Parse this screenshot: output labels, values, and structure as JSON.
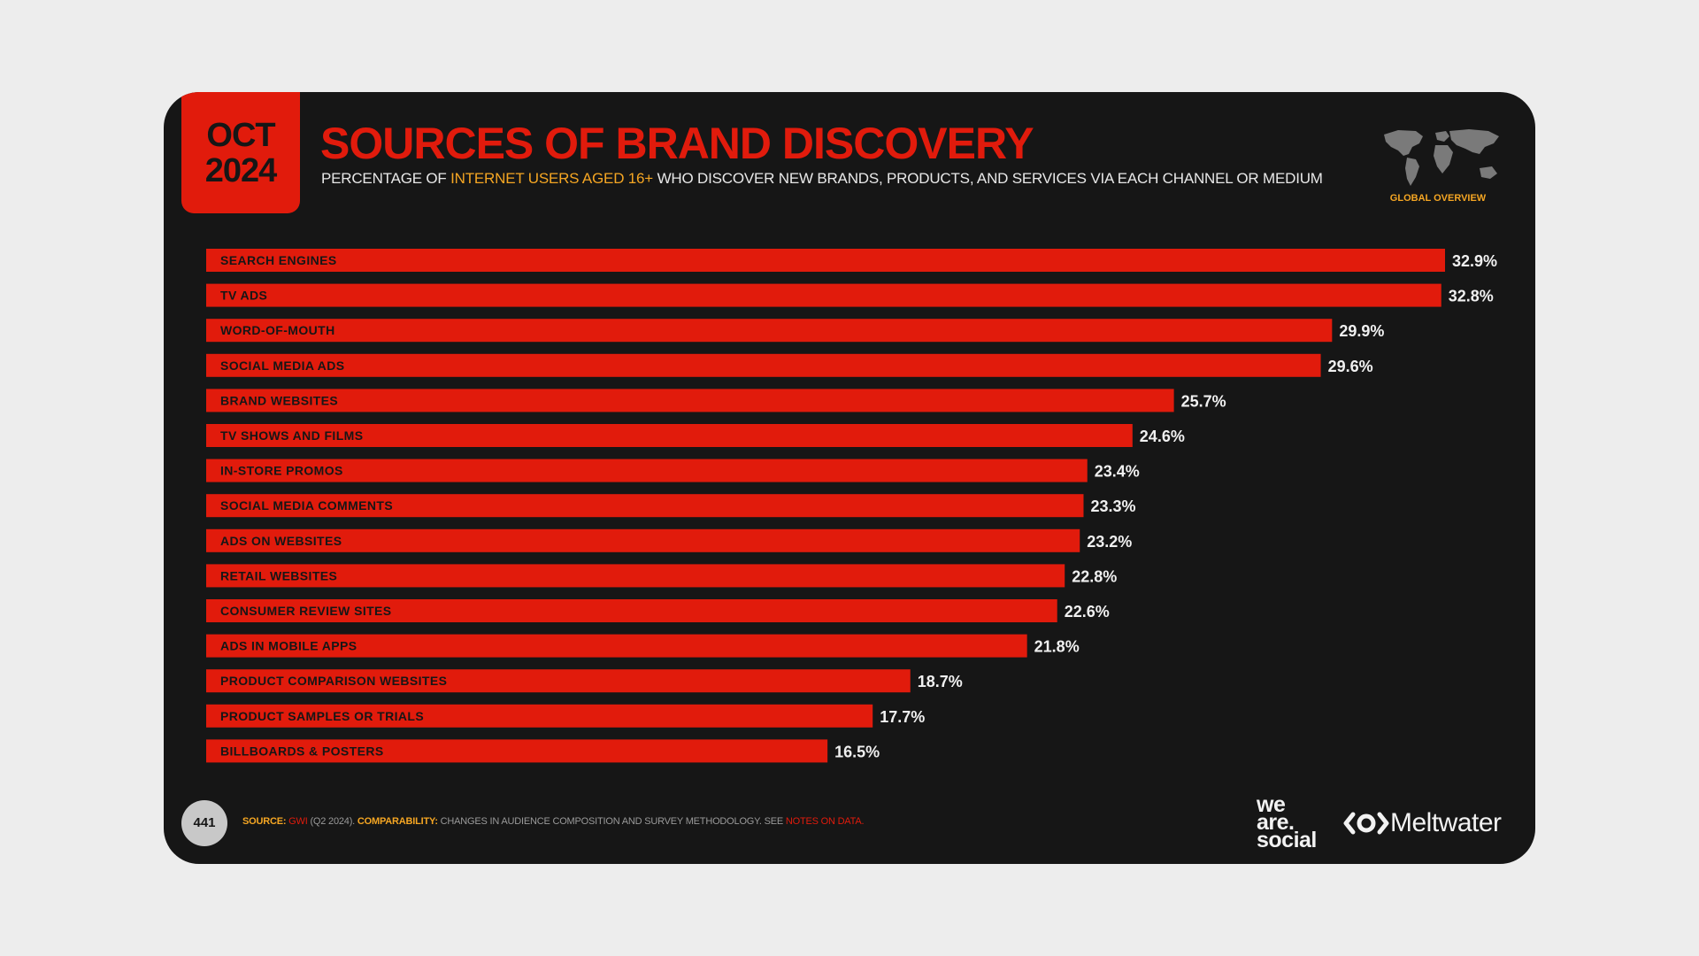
{
  "header": {
    "month": "OCT",
    "year": "2024",
    "title": "SOURCES OF BRAND DISCOVERY",
    "subtitle_pre": "PERCENTAGE OF ",
    "subtitle_highlight": "INTERNET USERS AGED 16+",
    "subtitle_post": " WHO DISCOVER NEW BRANDS, PRODUCTS, AND SERVICES VIA EACH CHANNEL OR MEDIUM",
    "region_label": "GLOBAL OVERVIEW"
  },
  "chart_data": {
    "type": "bar",
    "orientation": "horizontal",
    "categories": [
      "SEARCH ENGINES",
      "TV ADS",
      "WORD-OF-MOUTH",
      "SOCIAL MEDIA ADS",
      "BRAND WEBSITES",
      "TV SHOWS AND FILMS",
      "IN-STORE PROMOS",
      "SOCIAL MEDIA COMMENTS",
      "ADS ON WEBSITES",
      "RETAIL WEBSITES",
      "CONSUMER REVIEW SITES",
      "ADS IN MOBILE APPS",
      "PRODUCT COMPARISON WEBSITES",
      "PRODUCT SAMPLES OR TRIALS",
      "BILLBOARDS & POSTERS"
    ],
    "values": [
      32.9,
      32.8,
      29.9,
      29.6,
      25.7,
      24.6,
      23.4,
      23.3,
      23.2,
      22.8,
      22.6,
      21.8,
      18.7,
      17.7,
      16.5
    ],
    "value_labels": [
      "32.9%",
      "32.8%",
      "29.9%",
      "29.6%",
      "25.7%",
      "24.6%",
      "23.4%",
      "23.3%",
      "23.2%",
      "22.8%",
      "22.6%",
      "21.8%",
      "18.7%",
      "17.7%",
      "16.5%"
    ],
    "unit": "%",
    "bar_color": "#e11b0c",
    "grid": false,
    "legend": "none"
  },
  "footer": {
    "page_number": "441",
    "source_key": "SOURCE:",
    "source_value": " GWI",
    "source_detail": " (Q2 2024). ",
    "comparability_key": "COMPARABILITY:",
    "comparability_text": " CHANGES IN AUDIENCE COMPOSITION AND SURVEY METHODOLOGY. SEE ",
    "notes_link": "NOTES ON DATA."
  },
  "logos": {
    "we_are_social": [
      "we",
      "are.",
      "social"
    ],
    "meltwater": "Meltwater"
  },
  "colors": {
    "accent_red": "#e11b0c",
    "accent_orange": "#f5a623",
    "background": "#161616"
  }
}
